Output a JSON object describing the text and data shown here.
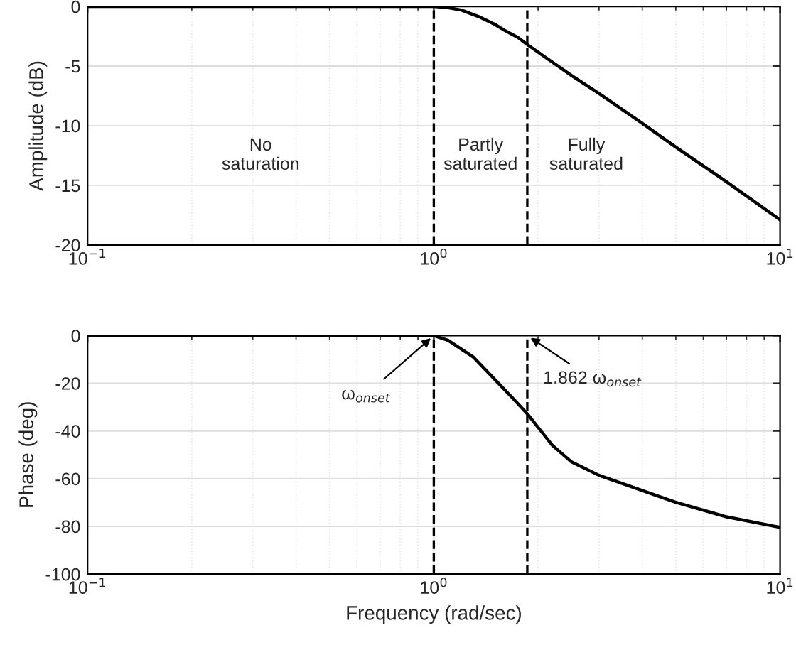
{
  "chart_data": [
    {
      "type": "line",
      "ylabel": "Amplitude (dB)",
      "log": "x",
      "grid": true,
      "line_style": "solid",
      "marker": "none",
      "xlim": [
        0.1,
        10
      ],
      "xticks": [
        {
          "value": 0.1,
          "label": "10$^{−1}$"
        },
        {
          "value": 1,
          "label": "10$^{0}$"
        },
        {
          "value": 10,
          "label": "10$^{1}$"
        }
      ],
      "ylim": [
        -20,
        0
      ],
      "yticks": [
        -20,
        -15,
        -10,
        -5,
        0
      ],
      "series": [
        {
          "color": "#000000",
          "x": [
            0.1,
            0.5,
            1,
            1.1,
            1.2,
            1.36,
            1.5,
            1.6,
            1.75,
            1.862,
            2.5,
            3,
            4,
            5,
            7,
            10
          ],
          "values": [
            0,
            0,
            0,
            -0.1,
            -0.3,
            -0.9,
            -1.5,
            -2.0,
            -2.6,
            -3.2,
            -5.8,
            -7.3,
            -9.8,
            -11.8,
            -14.7,
            -17.9
          ]
        }
      ],
      "ref_lines": [
        {
          "axis": "x",
          "value": 1,
          "line_style": "dashed",
          "color": "#000000"
        },
        {
          "axis": "x",
          "value": 1.862,
          "line_style": "dashed",
          "color": "#000000"
        }
      ],
      "annotations": [
        "No\nsaturation",
        "Partly\nsaturated",
        "Fully\nsaturated"
      ]
    },
    {
      "type": "line",
      "xlabel": "Frequency (rad/sec)",
      "ylabel": "Phase (deg)",
      "log": "x",
      "grid": true,
      "line_style": "solid",
      "marker": "none",
      "xlim": [
        0.1,
        10
      ],
      "xticks": [
        {
          "value": 0.1,
          "label": "10$^{−1}$"
        },
        {
          "value": 1,
          "label": "10$^{0}$"
        },
        {
          "value": 10,
          "label": "10$^{1}$"
        }
      ],
      "ylim": [
        -100,
        0
      ],
      "yticks": [
        -100,
        -80,
        -60,
        -40,
        -20,
        0
      ],
      "series": [
        {
          "color": "#000000",
          "x": [
            0.1,
            0.5,
            1,
            1.1,
            1.3,
            1.5,
            1.7,
            1.862,
            2.2,
            2.5,
            3,
            5,
            7,
            10
          ],
          "values": [
            0,
            0,
            0,
            -2,
            -9,
            -18.4,
            -26.6,
            -32.8,
            -46,
            -53,
            -58.6,
            -69.9,
            -76,
            -80.4
          ]
        }
      ],
      "ref_lines": [
        {
          "axis": "x",
          "value": 1,
          "line_style": "dashed",
          "color": "#000000"
        },
        {
          "axis": "x",
          "value": 1.862,
          "line_style": "dashed",
          "color": "#000000"
        }
      ],
      "annotations": [
        {
          "text": "ω$_{onset}$",
          "x": 1,
          "y": 0
        },
        {
          "text": "1.862 ω$_{onset}$",
          "x": 1.862,
          "y": 0
        }
      ]
    }
  ]
}
